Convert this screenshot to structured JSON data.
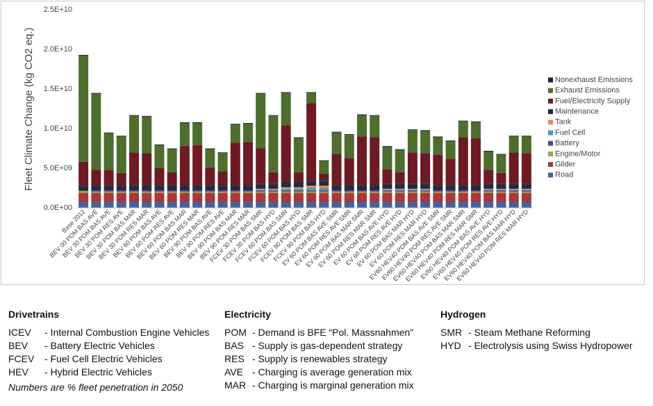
{
  "chart_data": {
    "type": "stacked-bar",
    "y_label": "Fleet Climate Change (kg CO2 eq.)",
    "categories": [
      "Base 2012",
      "BEV 00 POM BAS AVE",
      "BEV 30 POM BAS AVE",
      "BEV 30 POM RES AVE",
      "BEV 30 POM BAS MAR",
      "BEV 30 POM RES MAR",
      "BEV 60 POM BAS AVE",
      "BEV 60 POM RES AVE",
      "BEV 60 POM BAS MAR",
      "BEV 60 POM RES MAR",
      "BEV 90 POM BAS AVE",
      "BEV 90 POM RES AVE",
      "BEV 90 POM BAS MAR",
      "BEV 90 POM RES MAR",
      "FCEV 30 POM BAS SMR",
      "FCEV 30 POM BAS HYD",
      "FCEV 60 POM BAS SMR",
      "FCEV 60 POM BAS HYD",
      "FCEV 90 POM BAS SMR",
      "FCEV 90 POM BAS HYD",
      "EV 60 POM BAS AVE SMR",
      "EV 60 POM RES AVE SMR",
      "EV 60 POM BAS MAR SMR",
      "EV 60 POM RES MAR SMR",
      "EV 60 POM BAS AVE HYD",
      "EV 60 POM RES AVE HYD",
      "EV 60 POM BAS MAR HYD",
      "EV 60 POM RES MAR HYD",
      "EV60 HEV40 POM BAS AVE SMR",
      "EV60 HEV40 POM RES AVE SMR",
      "EV60 HEV40 POM BAS MAR SMR",
      "EV60 HEV40 POM RES MAR SMR",
      "EV60 HEV40 POM BAS AVE HYD",
      "EV60 HEV40 POM RES AVE HYD",
      "EV60 HEV40 POM BAS MAR HYD",
      "EV60 HEV40 POM RES MAR HYD"
    ],
    "series": [
      {
        "name": "Road",
        "color": "#3f62aa",
        "values": [
          700000000.0,
          700000000.0,
          700000000.0,
          700000000.0,
          700000000.0,
          700000000.0,
          700000000.0,
          700000000.0,
          700000000.0,
          700000000.0,
          700000000.0,
          700000000.0,
          700000000.0,
          700000000.0,
          700000000.0,
          700000000.0,
          700000000.0,
          700000000.0,
          700000000.0,
          700000000.0,
          700000000.0,
          700000000.0,
          700000000.0,
          700000000.0,
          700000000.0,
          700000000.0,
          700000000.0,
          700000000.0,
          700000000.0,
          700000000.0,
          700000000.0,
          700000000.0,
          700000000.0,
          700000000.0,
          700000000.0,
          700000000.0
        ]
      },
      {
        "name": "Glider",
        "color": "#a8383a",
        "values": [
          1200000000.0,
          1200000000.0,
          1200000000.0,
          1200000000.0,
          1200000000.0,
          1200000000.0,
          1200000000.0,
          1200000000.0,
          1200000000.0,
          1200000000.0,
          1200000000.0,
          1200000000.0,
          1200000000.0,
          1200000000.0,
          1200000000.0,
          1200000000.0,
          1200000000.0,
          1200000000.0,
          1200000000.0,
          1200000000.0,
          1200000000.0,
          1200000000.0,
          1200000000.0,
          1200000000.0,
          1200000000.0,
          1200000000.0,
          1200000000.0,
          1200000000.0,
          1200000000.0,
          1200000000.0,
          1200000000.0,
          1200000000.0,
          1200000000.0,
          1200000000.0,
          1200000000.0,
          1200000000.0
        ]
      },
      {
        "name": "Engine/Motor",
        "color": "#86b24f",
        "values": [
          250000000.0,
          150000000.0,
          150000000.0,
          150000000.0,
          150000000.0,
          150000000.0,
          150000000.0,
          150000000.0,
          150000000.0,
          150000000.0,
          150000000.0,
          150000000.0,
          150000000.0,
          150000000.0,
          150000000.0,
          150000000.0,
          150000000.0,
          150000000.0,
          150000000.0,
          150000000.0,
          150000000.0,
          150000000.0,
          150000000.0,
          150000000.0,
          150000000.0,
          150000000.0,
          150000000.0,
          150000000.0,
          150000000.0,
          150000000.0,
          150000000.0,
          150000000.0,
          150000000.0,
          150000000.0,
          150000000.0,
          150000000.0
        ]
      },
      {
        "name": "Battery",
        "color": "#5b4391",
        "values": [
          0,
          150000000.0,
          150000000.0,
          150000000.0,
          150000000.0,
          150000000.0,
          150000000.0,
          150000000.0,
          150000000.0,
          150000000.0,
          150000000.0,
          150000000.0,
          150000000.0,
          150000000.0,
          150000000.0,
          150000000.0,
          150000000.0,
          150000000.0,
          150000000.0,
          150000000.0,
          150000000.0,
          150000000.0,
          150000000.0,
          150000000.0,
          150000000.0,
          150000000.0,
          150000000.0,
          150000000.0,
          150000000.0,
          150000000.0,
          150000000.0,
          150000000.0,
          150000000.0,
          150000000.0,
          150000000.0,
          150000000.0
        ]
      },
      {
        "name": "Fuel Cell",
        "color": "#3d9db5",
        "values": [
          0,
          0,
          0,
          0,
          0,
          0,
          0,
          0,
          0,
          0,
          0,
          0,
          0,
          0,
          100000000.0,
          100000000.0,
          200000000.0,
          200000000.0,
          300000000.0,
          300000000.0,
          0,
          0,
          0,
          0,
          100000000.0,
          100000000.0,
          100000000.0,
          100000000.0,
          0,
          0,
          0,
          0,
          100000000.0,
          100000000.0,
          100000000.0,
          100000000.0
        ]
      },
      {
        "name": "Tank",
        "color": "#ea8a4c",
        "values": [
          0,
          0,
          0,
          0,
          0,
          0,
          0,
          0,
          0,
          0,
          0,
          0,
          0,
          0,
          100000000.0,
          100000000.0,
          200000000.0,
          200000000.0,
          300000000.0,
          300000000.0,
          0,
          0,
          0,
          0,
          100000000.0,
          100000000.0,
          100000000.0,
          100000000.0,
          0,
          0,
          0,
          0,
          100000000.0,
          100000000.0,
          100000000.0,
          100000000.0
        ]
      },
      {
        "name": "Maintenance",
        "color": "#1f2b47",
        "values": [
          600000000.0,
          600000000.0,
          600000000.0,
          600000000.0,
          600000000.0,
          600000000.0,
          600000000.0,
          600000000.0,
          600000000.0,
          600000000.0,
          600000000.0,
          600000000.0,
          600000000.0,
          600000000.0,
          600000000.0,
          600000000.0,
          600000000.0,
          600000000.0,
          600000000.0,
          600000000.0,
          600000000.0,
          600000000.0,
          600000000.0,
          600000000.0,
          600000000.0,
          600000000.0,
          600000000.0,
          600000000.0,
          600000000.0,
          600000000.0,
          600000000.0,
          600000000.0,
          600000000.0,
          600000000.0,
          600000000.0,
          600000000.0
        ]
      },
      {
        "name": "Fuel/Electricity Supply",
        "color": "#6d1a24",
        "values": [
          3050000000.0,
          2000000000.0,
          2000000000.0,
          1600000000.0,
          4200000000.0,
          4100000000.0,
          2200000000.0,
          1700000000.0,
          5000000000.0,
          5100000000.0,
          2300000000.0,
          1800000000.0,
          5400000000.0,
          5500000000.0,
          4500000000.0,
          1500000000.0,
          7200000000.0,
          1300000000.0,
          9800000000.0,
          900000000.0,
          4000000000.0,
          3500000000.0,
          6200000000.0,
          6100000000.0,
          1900000000.0,
          1500000000.0,
          4000000000.0,
          3900000000.0,
          3900000000.0,
          3400000000.0,
          6100000000.0,
          6000000000.0,
          1800000000.0,
          1400000000.0,
          4000000000.0,
          3900000000.0
        ]
      },
      {
        "name": "Exhaust Emissions",
        "color": "#4d6e2c",
        "values": [
          13400000000.0,
          9600000000.0,
          4600000000.0,
          4600000000.0,
          4600000000.0,
          4600000000.0,
          2900000000.0,
          2900000000.0,
          2900000000.0,
          2800000000.0,
          2300000000.0,
          2300000000.0,
          2300000000.0,
          2300000000.0,
          6900000000.0,
          7100000000.0,
          4100000000.0,
          4300000000.0,
          1300000000.0,
          1600000000.0,
          2700000000.0,
          2900000000.0,
          2700000000.0,
          2700000000.0,
          2800000000.0,
          2800000000.0,
          2800000000.0,
          2800000000.0,
          2200000000.0,
          2200000000.0,
          2000000000.0,
          2000000000.0,
          2300000000.0,
          2300000000.0,
          2000000000.0,
          2100000000.0
        ]
      },
      {
        "name": "Nonexhaust Emissions",
        "color": "#1a2233",
        "values": [
          100000000.0,
          100000000.0,
          100000000.0,
          100000000.0,
          100000000.0,
          100000000.0,
          100000000.0,
          100000000.0,
          100000000.0,
          100000000.0,
          100000000.0,
          100000000.0,
          100000000.0,
          100000000.0,
          100000000.0,
          100000000.0,
          100000000.0,
          100000000.0,
          100000000.0,
          100000000.0,
          100000000.0,
          100000000.0,
          100000000.0,
          100000000.0,
          100000000.0,
          100000000.0,
          100000000.0,
          100000000.0,
          100000000.0,
          100000000.0,
          100000000.0,
          100000000.0,
          100000000.0,
          100000000.0,
          100000000.0,
          100000000.0
        ]
      }
    ],
    "ylim": [
      0,
      25000000000.0
    ],
    "yticks": [
      {
        "value": 0,
        "label": "0.0E+00"
      },
      {
        "value": 5000000000.0,
        "label": "5.0E+09"
      },
      {
        "value": 10000000000.0,
        "label": "1.0E+10"
      },
      {
        "value": 15000000000.0,
        "label": "1.5E+10"
      },
      {
        "value": 20000000000.0,
        "label": "2.0E+10"
      },
      {
        "value": 25000000000.0,
        "label": "2.5E+10"
      }
    ],
    "grid": false,
    "legend": "right"
  },
  "notes": [
    {
      "heading": "Drivetrains",
      "items": [
        [
          "ICEV",
          "- Internal Combustion Engine Vehicles"
        ],
        [
          "BEV",
          "- Battery Electric Vehicles"
        ],
        [
          "FCEV",
          "- Fuel Cell Electric Vehicles"
        ],
        [
          "HEV",
          "- Hybrid Electric Vehicles"
        ]
      ],
      "footnote": "Numbers are % fleet penetration in 2050"
    },
    {
      "heading": "Electricity",
      "items": [
        [
          "POM",
          "- Demand is BFE “Pol. Massnahmen”"
        ],
        [
          "BAS",
          "- Supply is gas-dependent strategy"
        ],
        [
          "RES",
          "- Supply is renewables strategy"
        ],
        [
          "AVE",
          "- Charging is average generation mix"
        ],
        [
          "MAR",
          "- Charging is marginal generation mix"
        ]
      ]
    },
    {
      "heading": "Hydrogen",
      "items": [
        [
          "SMR",
          "- Steam Methane Reforming"
        ],
        [
          "HYD",
          "- Electrolysis using Swiss Hydropower"
        ]
      ]
    }
  ]
}
